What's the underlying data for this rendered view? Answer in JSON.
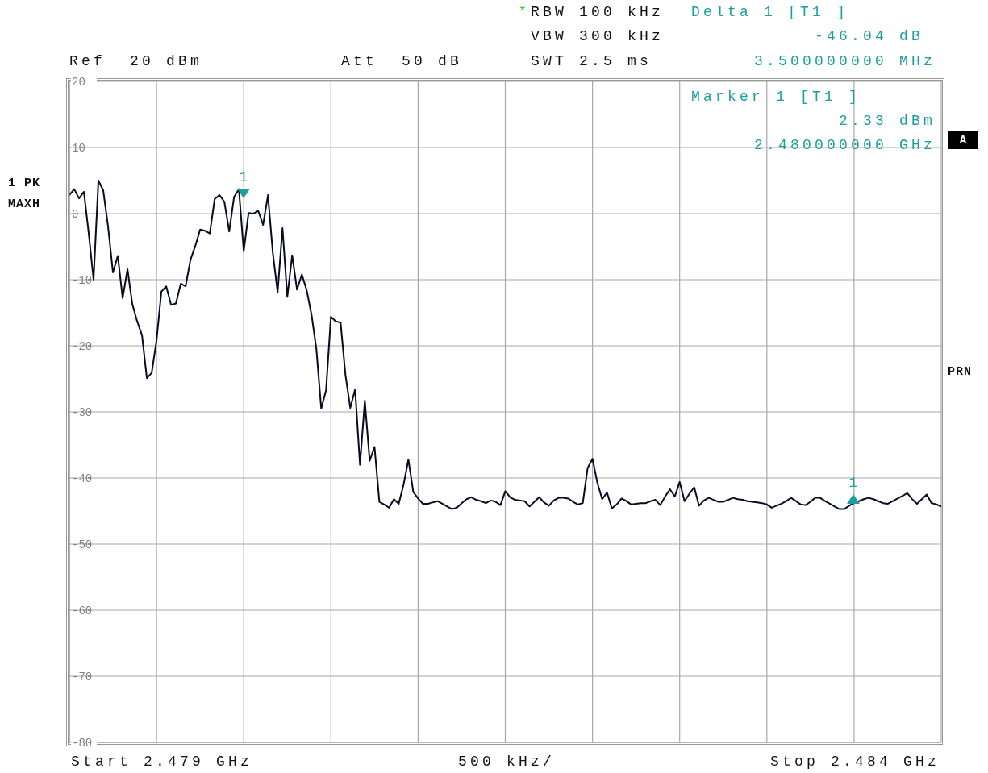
{
  "chart_data": {
    "type": "line",
    "categories": [
      null,
      null,
      null,
      null,
      null,
      null,
      null,
      null,
      null,
      null,
      null,
      null,
      null,
      null,
      null,
      null,
      null,
      null,
      null,
      null,
      null,
      null,
      null,
      null,
      null,
      null,
      null,
      null,
      null,
      null,
      null,
      null,
      null,
      null,
      null,
      null,
      null,
      null,
      null,
      null,
      null,
      null,
      null,
      null,
      null,
      null,
      null,
      null,
      null,
      null,
      null,
      null,
      null,
      null,
      null,
      null,
      null,
      null,
      null,
      null,
      null,
      null,
      null,
      null,
      null,
      null,
      null,
      null,
      null,
      null,
      null,
      null,
      null,
      null,
      null,
      null,
      null,
      null,
      null,
      null,
      null,
      null,
      null,
      null,
      null,
      null,
      null,
      null,
      null,
      null,
      null,
      null,
      null,
      null,
      null,
      null,
      null,
      null,
      null,
      null,
      null,
      null,
      null,
      null,
      null,
      null,
      null,
      null,
      null,
      null,
      null,
      null,
      null,
      null,
      null,
      null,
      null,
      null,
      null,
      null,
      null,
      null,
      null,
      null,
      null,
      null,
      null,
      null,
      null,
      null,
      null,
      null,
      null,
      null,
      null,
      null,
      null,
      null,
      null,
      null,
      null,
      null,
      null,
      null,
      null,
      null,
      null,
      null,
      null,
      null,
      null,
      null,
      null,
      null,
      null,
      null,
      null,
      null,
      null,
      null,
      null,
      null,
      null,
      null,
      null,
      null,
      null,
      null,
      null,
      null,
      null,
      null,
      null,
      null,
      null,
      null,
      null,
      null,
      null,
      null,
      null
    ],
    "ylim": [
      -80,
      20
    ],
    "yticks": [
      20,
      10,
      0,
      -10,
      -20,
      -30,
      -40,
      -50,
      -60,
      -70,
      -80
    ],
    "grid": true,
    "series": [
      {
        "color": "#0a0a23",
        "values": [
          2.8,
          3.7,
          2.3,
          3.3,
          -3.0,
          -10,
          5.0,
          3.5,
          -2.0,
          -8.9,
          -6.4,
          -12.8,
          -8.4,
          -13.7,
          -16.3,
          -18.4,
          -24.9,
          -24.1,
          -19.2,
          -11.8,
          -11.0,
          -13.8,
          -13.6,
          -10.6,
          -11.0,
          -7.0,
          -4.9,
          -2.4,
          -2.6,
          -3.0,
          2.2,
          2.8,
          1.8,
          -2.7,
          2.5,
          3.7,
          -5.7,
          0.1,
          0.0,
          0.4,
          -1.7,
          2.8,
          -5.9,
          -11.9,
          -2.2,
          -12.6,
          -6.3,
          -11.5,
          -9.2,
          -11.6,
          -15.3,
          -20.5,
          -29.5,
          -26.7,
          -15.6,
          -16.3,
          -16.5,
          -24.4,
          -29.4,
          -26.6,
          -38.0,
          -28.3,
          -37.4,
          -35.3,
          -43.6,
          -44.0,
          -44.5,
          -43.2,
          -43.9,
          -41.0,
          -37.2,
          -42.1,
          -43.1,
          -43.9,
          -43.9,
          -43.7,
          -43.5,
          -43.9,
          -44.3,
          -44.7,
          -44.5,
          -43.8,
          -43.2,
          -42.9,
          -43.3,
          -43.5,
          -43.8,
          -43.4,
          -43.6,
          -44.1,
          -42.0,
          -42.9,
          -43.3,
          -43.4,
          -43.5,
          -44.3,
          -43.6,
          -42.9,
          -43.7,
          -44.2,
          -43.4,
          -43.0,
          -43.0,
          -43.1,
          -43.6,
          -44.0,
          -43.8,
          -38.5,
          -37.1,
          -40.7,
          -43.2,
          -42.2,
          -44.6,
          -44.0,
          -43.1,
          -43.5,
          -44.0,
          -43.9,
          -43.8,
          -43.8,
          -43.5,
          -43.3,
          -44.1,
          -42.8,
          -41.7,
          -42.8,
          -40.6,
          -43.5,
          -42.4,
          -41.4,
          -44.2,
          -43.4,
          -43.0,
          -43.3,
          -43.6,
          -43.6,
          -43.3,
          -43.0,
          -43.2,
          -43.3,
          -43.5,
          -43.6,
          -43.7,
          -43.8,
          -44.0,
          -44.5,
          -44.2,
          -43.9,
          -43.5,
          -43.0,
          -43.5,
          -44.0,
          -44.1,
          -43.6,
          -43.0,
          -43.0,
          -43.5,
          -43.9,
          -44.3,
          -44.7,
          -44.7,
          -44.2,
          -43.8,
          -43.5,
          -43.2,
          -43.0,
          -43.2,
          -43.5,
          -43.8,
          -43.9,
          -43.5,
          -43.1,
          -42.7,
          -42.3,
          -43.2,
          -43.9,
          -43.2,
          -42.5,
          -43.8,
          -44.0,
          -44.3
        ]
      }
    ],
    "annotations": [
      "*",
      "RBW 100 kHz",
      "VBW 300 kHz",
      "SWT 2.5 ms",
      "Ref  20 dBm",
      "Att  50 dB",
      "Delta 1 [T1 ]",
      "-46.04 dB",
      "3.500000000 MHz",
      "Marker 1 [T1 ]",
      "2.33 dBm",
      "2.480000000 GHz",
      "1 PK",
      "MAXH",
      "A",
      "PRN",
      "Start 2.479 GHz",
      "500 kHz/",
      "Stop 2.484 GHz",
      "1",
      "1"
    ]
  }
}
